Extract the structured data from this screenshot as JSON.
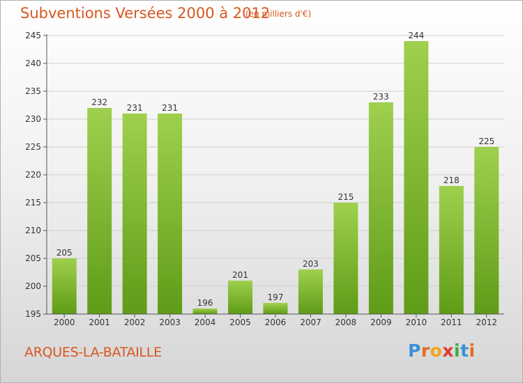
{
  "title": "Subventions Versées 2000 à 2012",
  "subtitle": "(en milliers d'€)",
  "place": "ARQUES-LA-BATAILLE",
  "logo": {
    "text": "Proxiti",
    "letter_colors": [
      "#3a8fd6",
      "#e56b1f",
      "#f2a41c",
      "#e03a2e",
      "#3aaa4a",
      "#3a8fd6",
      "#e56b1f"
    ]
  },
  "colors": {
    "bar_light": "#9fd04e",
    "bar_dark": "#5f9c17",
    "grid": "#cfcfcf",
    "axis": "#555555",
    "accent": "#d8561f"
  },
  "chart_data": {
    "type": "bar",
    "title": "Subventions Versées 2000 à 2012",
    "subtitle": "(en milliers d'€)",
    "categories": [
      "2000",
      "2001",
      "2002",
      "2003",
      "2004",
      "2005",
      "2006",
      "2007",
      "2008",
      "2009",
      "2010",
      "2011",
      "2012"
    ],
    "values": [
      205,
      232,
      231,
      231,
      196,
      201,
      197,
      203,
      215,
      233,
      244,
      218,
      225
    ],
    "ylim": [
      195,
      245
    ],
    "yticks": [
      195,
      200,
      205,
      210,
      215,
      220,
      225,
      230,
      235,
      240,
      245
    ],
    "grid": true,
    "data_labels": true
  }
}
